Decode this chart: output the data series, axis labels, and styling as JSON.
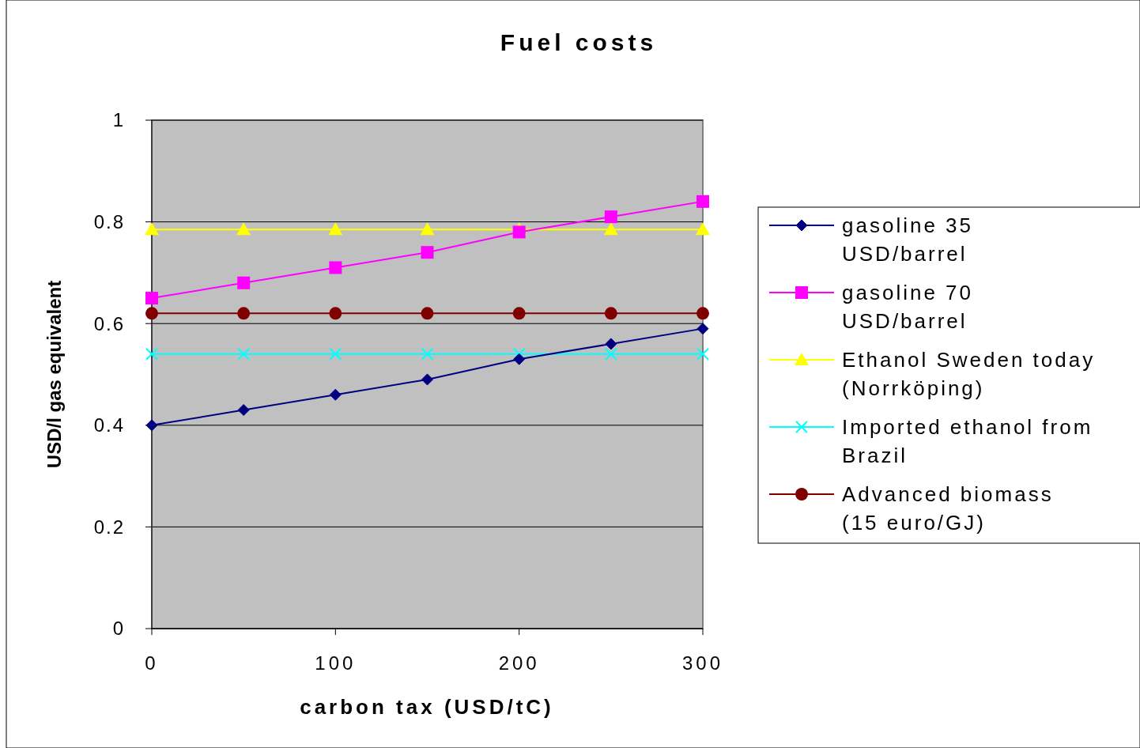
{
  "chart_data": {
    "type": "line",
    "title": "Fuel costs",
    "xlabel": "carbon tax (USD/tC)",
    "ylabel": "USD/l gas equivalent",
    "x": [
      0,
      50,
      100,
      150,
      200,
      250,
      300
    ],
    "xlim": [
      0,
      300
    ],
    "xticks": [
      0,
      100,
      200,
      300
    ],
    "ylim": [
      0,
      1
    ],
    "yticks": [
      0,
      0.2,
      0.4,
      0.6,
      0.8,
      1
    ],
    "grid": "y",
    "legend": "right",
    "series": [
      {
        "name": "gasoline 35 USD/barrel",
        "color": "#000080",
        "marker": "diamond",
        "values": [
          0.4,
          0.43,
          0.46,
          0.49,
          0.53,
          0.56,
          0.59
        ]
      },
      {
        "name": "gasoline 70 USD/barrel",
        "color": "#ff00ff",
        "marker": "square",
        "values": [
          0.65,
          0.68,
          0.71,
          0.74,
          0.78,
          0.81,
          0.84
        ]
      },
      {
        "name": "Ethanol Sweden today (Norrköping)",
        "color": "#ffff00",
        "marker": "triangle",
        "values": [
          0.785,
          0.785,
          0.785,
          0.785,
          0.785,
          0.785,
          0.785
        ]
      },
      {
        "name": "Imported ethanol from Brazil",
        "color": "#00ffff",
        "marker": "cross",
        "values": [
          0.54,
          0.54,
          0.54,
          0.54,
          0.54,
          0.54,
          0.54
        ]
      },
      {
        "name": "Advanced biomass (15 euro/GJ)",
        "color": "#800000",
        "marker": "circle",
        "values": [
          0.62,
          0.62,
          0.62,
          0.62,
          0.62,
          0.62,
          0.62
        ]
      }
    ]
  }
}
